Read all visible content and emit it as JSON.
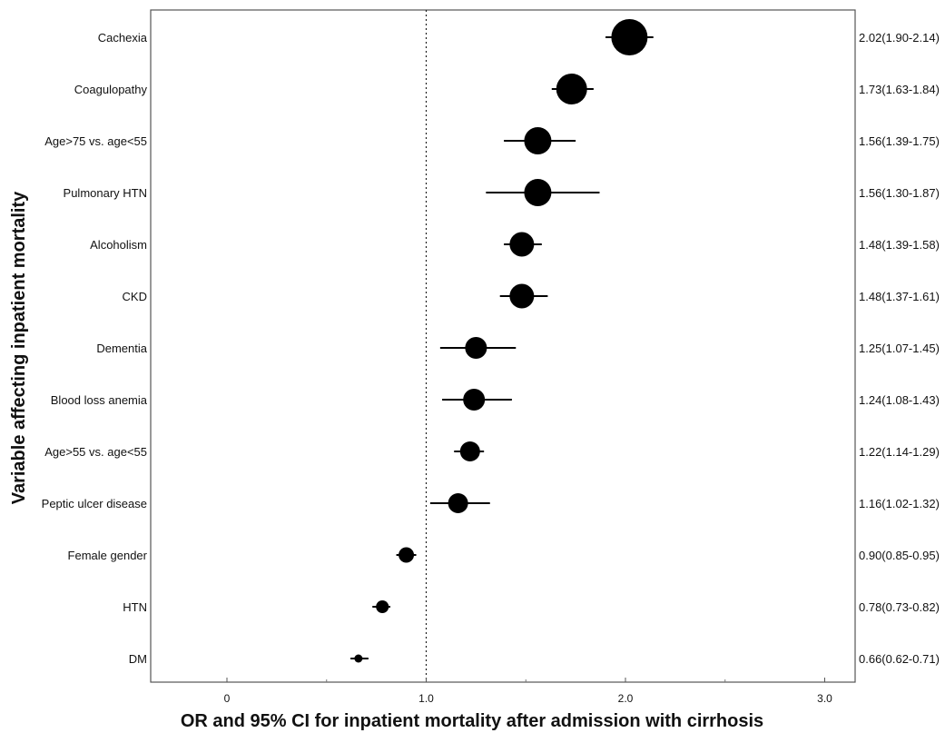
{
  "chart_data": {
    "type": "forest",
    "xlabel": "OR and 95% CI for inpatient mortality after admission with cirrhosis",
    "ylabel": "Variable affecting inpatient mortality",
    "xlim": [
      -0.38,
      3.0
    ],
    "xticks": [
      0,
      1.0,
      2.0,
      3.0
    ],
    "xtick_labels": [
      "0",
      "1.0",
      "2.0",
      "3.0"
    ],
    "reference_line": 1.0,
    "rows": [
      {
        "label": "Cachexia",
        "or": 2.02,
        "lo": 1.9,
        "hi": 2.14,
        "text": "2.02(1.90-2.14)",
        "weight": 20
      },
      {
        "label": "Coagulopathy",
        "or": 1.73,
        "lo": 1.63,
        "hi": 1.84,
        "text": "1.73(1.63-1.84)",
        "weight": 17
      },
      {
        "label": "Age>75 vs. age<55",
        "or": 1.56,
        "lo": 1.39,
        "hi": 1.75,
        "text": "1.56(1.39-1.75)",
        "weight": 15
      },
      {
        "label": "Pulmonary HTN",
        "or": 1.56,
        "lo": 1.3,
        "hi": 1.87,
        "text": "1.56(1.30-1.87)",
        "weight": 15
      },
      {
        "label": "Alcoholism",
        "or": 1.48,
        "lo": 1.39,
        "hi": 1.58,
        "text": "1.48(1.39-1.58)",
        "weight": 13.5
      },
      {
        "label": "CKD",
        "or": 1.48,
        "lo": 1.37,
        "hi": 1.61,
        "text": "1.48(1.37-1.61)",
        "weight": 13.5
      },
      {
        "label": "Dementia",
        "or": 1.25,
        "lo": 1.07,
        "hi": 1.45,
        "text": "1.25(1.07-1.45)",
        "weight": 12
      },
      {
        "label": "Blood loss anemia",
        "or": 1.24,
        "lo": 1.08,
        "hi": 1.43,
        "text": "1.24(1.08-1.43)",
        "weight": 12
      },
      {
        "label": "Age>55 vs. age<55",
        "or": 1.22,
        "lo": 1.14,
        "hi": 1.29,
        "text": "1.22(1.14-1.29)",
        "weight": 11
      },
      {
        "label": "Peptic ulcer disease",
        "or": 1.16,
        "lo": 1.02,
        "hi": 1.32,
        "text": "1.16(1.02-1.32)",
        "weight": 11
      },
      {
        "label": "Female gender",
        "or": 0.9,
        "lo": 0.85,
        "hi": 0.95,
        "text": "0.90(0.85-0.95)",
        "weight": 8.5
      },
      {
        "label": "HTN",
        "or": 0.78,
        "lo": 0.73,
        "hi": 0.82,
        "text": "0.78(0.73-0.82)",
        "weight": 7
      },
      {
        "label": "DM",
        "or": 0.66,
        "lo": 0.62,
        "hi": 0.71,
        "text": "0.66(0.62-0.71)",
        "weight": 4.5
      }
    ]
  }
}
